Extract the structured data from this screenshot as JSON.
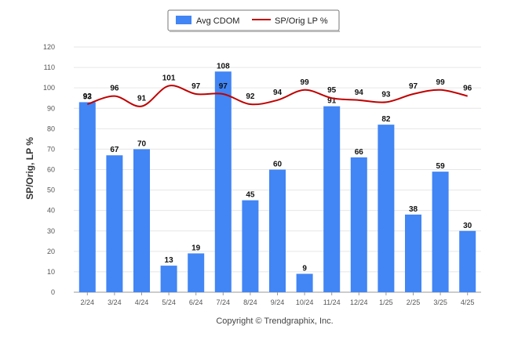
{
  "chart_data": {
    "type": "bar",
    "categories": [
      "2/24",
      "3/24",
      "4/24",
      "5/24",
      "6/24",
      "7/24",
      "8/24",
      "9/24",
      "10/24",
      "11/24",
      "12/24",
      "1/25",
      "2/25",
      "3/25",
      "4/25"
    ],
    "series": [
      {
        "name": "Avg CDOM",
        "type": "bar",
        "color": "#4285f4",
        "values": [
          93,
          67,
          70,
          13,
          19,
          108,
          45,
          60,
          9,
          91,
          66,
          82,
          38,
          59,
          30
        ]
      },
      {
        "name": "SP/Orig LP %",
        "type": "line",
        "color": "#c00000",
        "values": [
          92,
          96,
          91,
          101,
          97,
          97,
          92,
          94,
          99,
          95,
          94,
          93,
          97,
          99,
          96
        ]
      }
    ],
    "ylabel": "SP/Orig, LP %",
    "ylim": [
      0,
      120
    ],
    "yticks": [
      0,
      10,
      20,
      30,
      40,
      50,
      60,
      70,
      80,
      90,
      100,
      110,
      120
    ],
    "grid": true,
    "legend": "top-center",
    "footer": "Copyright © Trendgraphix, Inc."
  }
}
